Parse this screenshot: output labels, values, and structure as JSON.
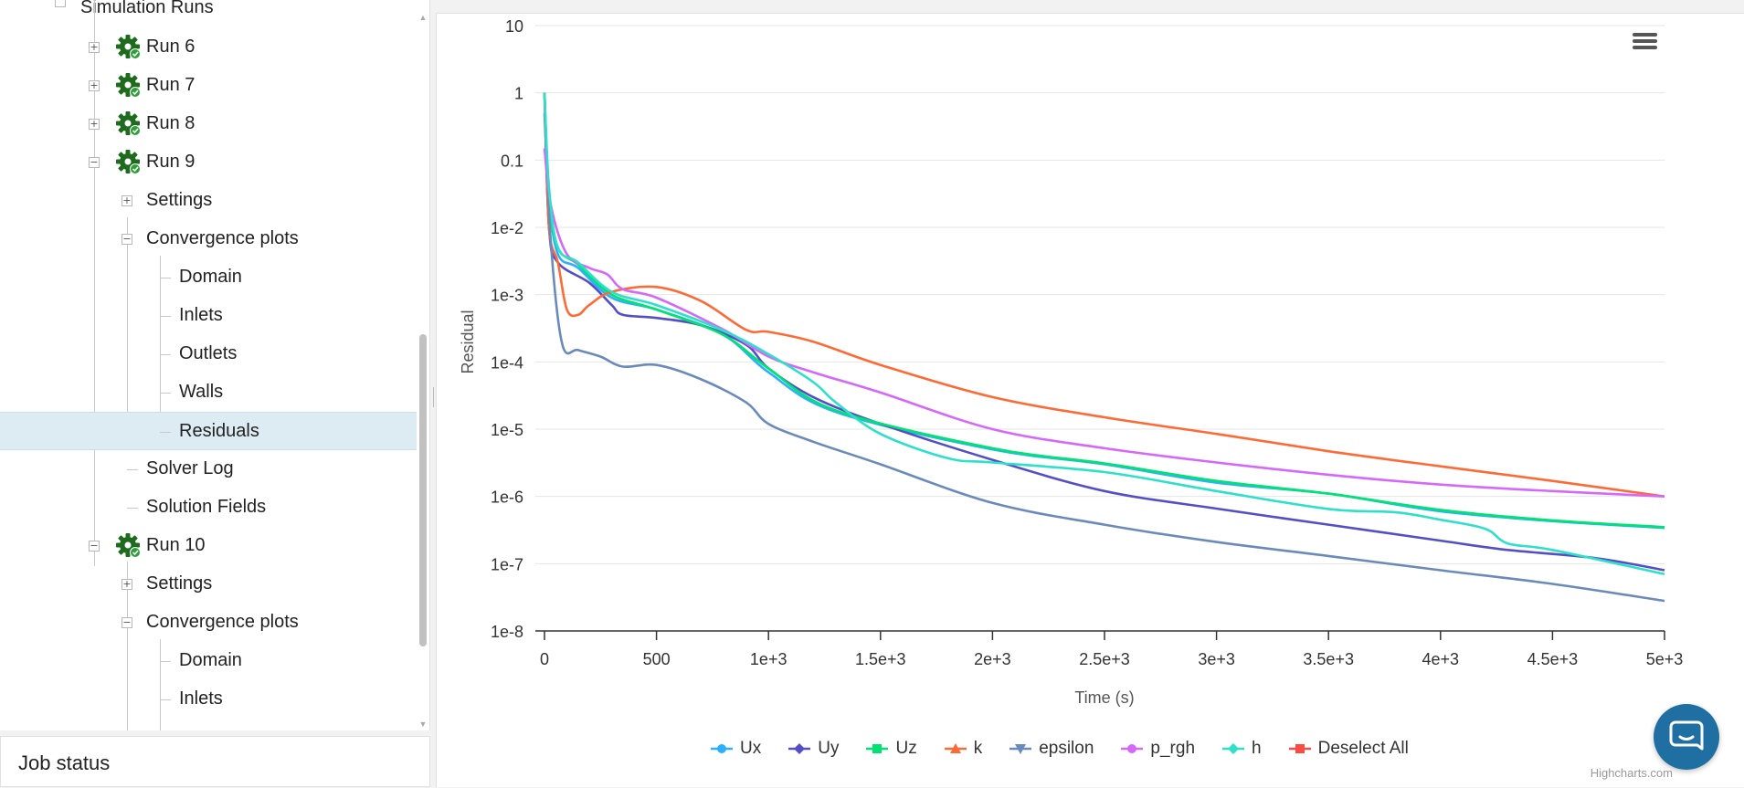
{
  "tree": {
    "partial_top_label": "Simulation Runs",
    "rows": [
      {
        "label": "Run 6",
        "toggle": "+"
      },
      {
        "label": "Run 7",
        "toggle": "+"
      },
      {
        "label": "Run 8",
        "toggle": "+"
      },
      {
        "label": "Run 9",
        "toggle": "−"
      },
      {
        "label": "Settings",
        "toggle": "+"
      },
      {
        "label": "Convergence plots",
        "toggle": "−"
      },
      {
        "label": "Domain"
      },
      {
        "label": "Inlets"
      },
      {
        "label": "Outlets"
      },
      {
        "label": "Walls"
      },
      {
        "label": "Residuals"
      },
      {
        "label": "Solver Log"
      },
      {
        "label": "Solution Fields"
      },
      {
        "label": "Run 10",
        "toggle": "−"
      },
      {
        "label": "Settings",
        "toggle": "+"
      },
      {
        "label": "Convergence plots",
        "toggle": "−"
      },
      {
        "label": "Domain"
      },
      {
        "label": "Inlets"
      }
    ]
  },
  "job_status": {
    "title": "Job status"
  },
  "chart_menu": {
    "icon": "hamburger-menu-icon"
  },
  "chat_widget": {
    "icon": "chat-bubble-icon"
  },
  "colors": {
    "Ux": "#2caffe",
    "Uy": "#544fc5",
    "Uz": "#00e272",
    "k": "#fe6a35",
    "epsilon": "#6b8abc",
    "p_rgh": "#d568fb",
    "h": "#2ee0ca",
    "deselect": "#fa4b42",
    "selected_row": "#ddecf3",
    "gear": "#1e6b1e"
  },
  "chart_data": {
    "type": "line",
    "title": "",
    "xlabel": "Time (s)",
    "ylabel": "Residual",
    "y_scale": "log",
    "ylim": [
      1e-08,
      10
    ],
    "xlim": [
      0,
      5000
    ],
    "x_ticks": [
      "0",
      "500",
      "1e+3",
      "1.5e+3",
      "2e+3",
      "2.5e+3",
      "3e+3",
      "3.5e+3",
      "4e+3",
      "4.5e+3",
      "5e+3"
    ],
    "y_ticks": [
      "10",
      "1",
      "0.1",
      "1e-2",
      "1e-3",
      "1e-4",
      "1e-5",
      "1e-6",
      "1e-7",
      "1e-8"
    ],
    "series": [
      {
        "name": "Ux",
        "x": [
          0,
          20,
          60,
          150,
          300,
          500,
          800,
          1000,
          1300,
          2000,
          2500,
          3000,
          3500,
          4000,
          4500,
          5000
        ],
        "values": [
          1,
          0.03,
          0.004,
          0.0025,
          0.0009,
          0.0006,
          0.00025,
          7e-05,
          1.8e-05,
          5e-06,
          3e-06,
          1.6e-06,
          1.1e-06,
          6e-07,
          4.3e-07,
          3.4e-07
        ]
      },
      {
        "name": "Uy",
        "x": [
          0,
          20,
          60,
          200,
          300,
          350,
          500,
          700,
          900,
          1000,
          1200,
          1500,
          2000,
          2500,
          3000,
          3500,
          4000,
          4300,
          4700,
          5000
        ],
        "values": [
          1,
          0.01,
          0.003,
          0.0015,
          0.0007,
          0.0005,
          0.00045,
          0.00035,
          0.00018,
          8e-05,
          3e-05,
          1.2e-05,
          3.5e-06,
          1.2e-06,
          6.6e-07,
          3.8e-07,
          2.2e-07,
          1.6e-07,
          1.2e-07,
          8e-08
        ]
      },
      {
        "name": "Uz",
        "x": [
          0,
          20,
          60,
          150,
          300,
          500,
          800,
          1000,
          1300,
          2000,
          2500,
          3000,
          3500,
          4000,
          4500,
          5000
        ],
        "values": [
          1,
          0.03,
          0.005,
          0.0028,
          0.001,
          0.0006,
          0.00025,
          8e-05,
          1.9e-05,
          5.2e-06,
          3.1e-06,
          1.7e-06,
          1.1e-06,
          6.3e-07,
          4.4e-07,
          3.5e-07
        ]
      },
      {
        "name": "k",
        "x": [
          0,
          20,
          60,
          100,
          150,
          200,
          300,
          500,
          700,
          900,
          1000,
          1200,
          1500,
          2000,
          2500,
          3000,
          3500,
          4000,
          4500,
          5000
        ],
        "values": [
          1,
          0.01,
          0.003,
          0.0006,
          0.0005,
          0.0007,
          0.0011,
          0.0013,
          0.0008,
          0.0003,
          0.00028,
          0.0002,
          9e-05,
          3e-05,
          1.5e-05,
          8.5e-06,
          4.7e-06,
          2.8e-06,
          1.7e-06,
          1e-06
        ]
      },
      {
        "name": "epsilon",
        "x": [
          0,
          30,
          80,
          150,
          250,
          350,
          500,
          700,
          900,
          1000,
          1200,
          1500,
          2000,
          2500,
          3000,
          3500,
          4000,
          4500,
          5000
        ],
        "values": [
          0.5,
          0.005,
          0.00018,
          0.00015,
          0.00012,
          8.5e-05,
          9e-05,
          5.5e-05,
          2.5e-05,
          1.2e-05,
          6.5e-06,
          3e-06,
          8e-07,
          3.8e-07,
          2.1e-07,
          1.3e-07,
          8e-08,
          5e-08,
          2.8e-08
        ]
      },
      {
        "name": "p_rgh",
        "x": [
          0,
          30,
          100,
          200,
          280,
          350,
          500,
          800,
          1000,
          1200,
          1500,
          2000,
          2500,
          3000,
          3500,
          4000,
          4500,
          5000
        ],
        "values": [
          0.15,
          0.02,
          0.004,
          0.0025,
          0.002,
          0.0012,
          0.0009,
          0.0003,
          0.00012,
          7e-05,
          3.5e-05,
          1e-05,
          5.2e-06,
          3.2e-06,
          2.1e-06,
          1.5e-06,
          1.2e-06,
          1e-06
        ]
      },
      {
        "name": "h",
        "x": [
          0,
          20,
          60,
          150,
          300,
          500,
          800,
          1000,
          1200,
          1300,
          1500,
          1800,
          2000,
          2500,
          3000,
          3500,
          3800,
          4000,
          4200,
          4300,
          4500,
          5000
        ],
        "values": [
          1,
          0.04,
          0.005,
          0.003,
          0.0011,
          0.0007,
          0.00029,
          0.00013,
          5e-05,
          2.5e-05,
          8.5e-06,
          3.7e-06,
          3.2e-06,
          2.3e-06,
          1.2e-06,
          6.5e-07,
          5.8e-07,
          4.5e-07,
          3.3e-07,
          2e-07,
          1.6e-07,
          7e-08
        ]
      }
    ],
    "legend": [
      "Ux",
      "Uy",
      "Uz",
      "k",
      "epsilon",
      "p_rgh",
      "h",
      "Deselect All"
    ],
    "legend_position": "bottom-center",
    "credits": "Highcharts.com"
  }
}
